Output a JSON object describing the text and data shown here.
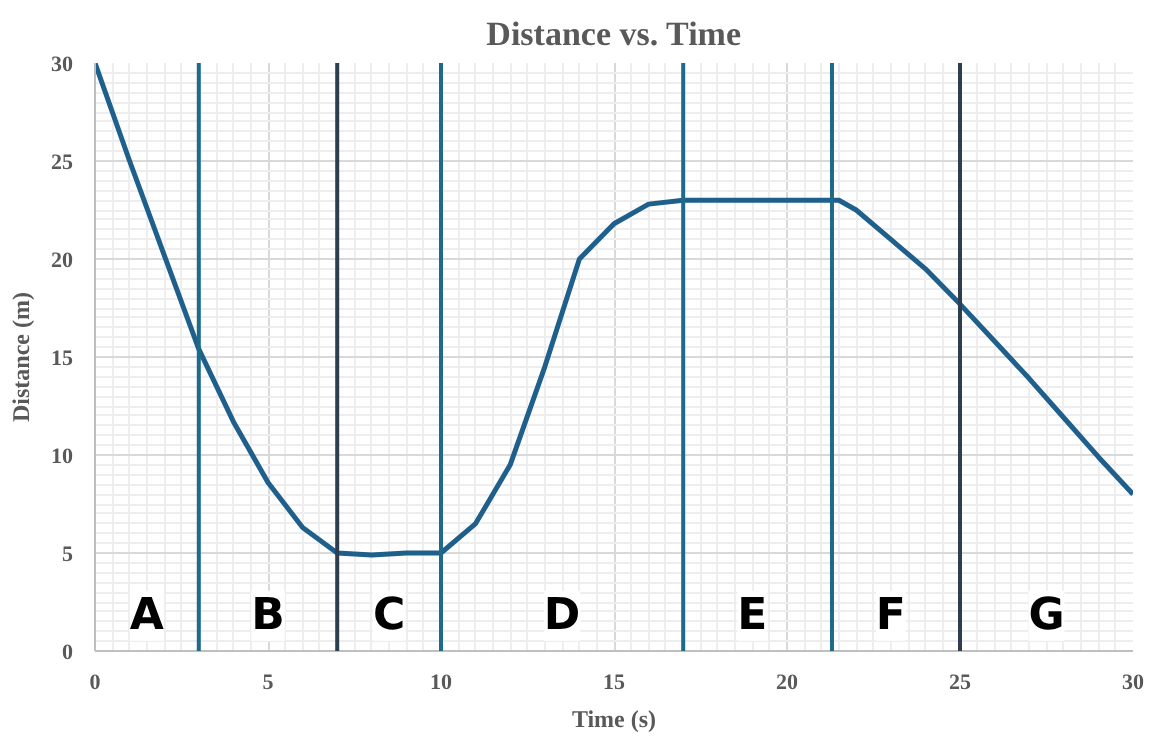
{
  "chart_data": {
    "type": "line",
    "title": "Distance vs. Time",
    "xlabel": "Time (s)",
    "ylabel": "Distance (m)",
    "x": [
      0,
      1,
      2,
      3,
      4,
      5,
      6,
      7,
      8,
      9,
      10,
      11,
      12,
      13,
      14,
      15,
      16,
      17,
      18,
      19,
      20,
      21,
      21.5,
      22,
      23,
      24,
      25,
      26,
      27,
      28,
      29,
      30
    ],
    "series": [
      {
        "color": "#1f5f8b",
        "values": [
          30,
          25,
          20.2,
          15.4,
          11.7,
          8.6,
          6.3,
          5,
          4.9,
          5,
          5,
          6.5,
          9.5,
          14.5,
          20,
          21.8,
          22.8,
          23,
          23,
          23,
          23,
          23,
          23,
          22.5,
          21,
          19.5,
          17.7,
          15.8,
          13.9,
          11.9,
          9.9,
          8
        ]
      }
    ],
    "xlim": [
      0,
      30
    ],
    "ylim": [
      0,
      30
    ],
    "xticks": [
      0,
      5,
      10,
      15,
      20,
      25,
      30
    ],
    "yticks": [
      0,
      5,
      10,
      15,
      20,
      25,
      30
    ],
    "grid": true,
    "line_style": "solid",
    "marker": "none",
    "ref_lines": [
      {
        "axis": "x",
        "value": 3,
        "color": "#1e6a8a"
      },
      {
        "axis": "x",
        "value": 7,
        "color": "#2c3e50"
      },
      {
        "axis": "x",
        "value": 10,
        "color": "#1e6a8a"
      },
      {
        "axis": "x",
        "value": 17,
        "color": "#1e6a8a"
      },
      {
        "axis": "x",
        "value": 21.3,
        "color": "#1e6a8a"
      },
      {
        "axis": "x",
        "value": 25,
        "color": "#2c3e50"
      }
    ],
    "annotations": [
      {
        "text": "A",
        "x": 1.5,
        "y": 1.8
      },
      {
        "text": "B",
        "x": 5,
        "y": 1.8
      },
      {
        "text": "C",
        "x": 8.5,
        "y": 1.8
      },
      {
        "text": "D",
        "x": 13.5,
        "y": 1.8
      },
      {
        "text": "E",
        "x": 19,
        "y": 1.8
      },
      {
        "text": "F",
        "x": 23,
        "y": 1.8
      },
      {
        "text": "G",
        "x": 27.5,
        "y": 1.8
      }
    ]
  }
}
